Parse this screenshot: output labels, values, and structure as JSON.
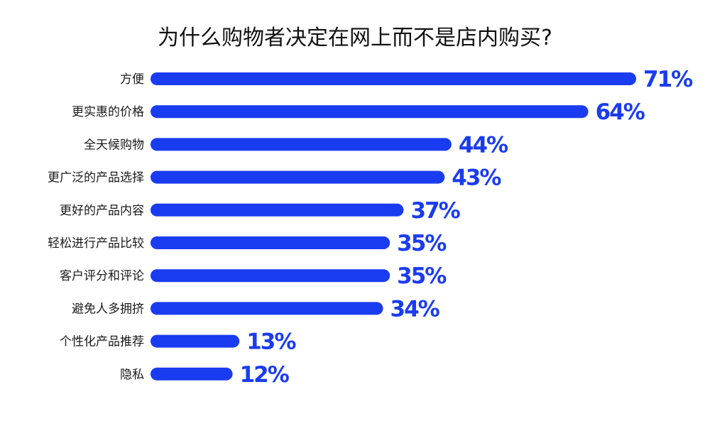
{
  "chart_data": {
    "type": "bar",
    "orientation": "horizontal",
    "title": "为什么购物者决定在网上而不是店内购买?",
    "categories": [
      "方便",
      "更实惠的价格",
      "全天候购物",
      "更广泛的产品选择",
      "更好的产品内容",
      "轻松进行产品比较",
      "客户评分和评论",
      "避免人多拥挤",
      "个性化产品推荐",
      "隐私"
    ],
    "values": [
      71,
      64,
      44,
      43,
      37,
      35,
      35,
      34,
      13,
      12
    ],
    "value_labels": [
      "71%",
      "64%",
      "44%",
      "43%",
      "37%",
      "35%",
      "35%",
      "34%",
      "13%",
      "12%"
    ],
    "unit": "%",
    "xlim": [
      0,
      71
    ],
    "grid": false,
    "legend": "none",
    "bar_color": "#1a3cf0"
  }
}
